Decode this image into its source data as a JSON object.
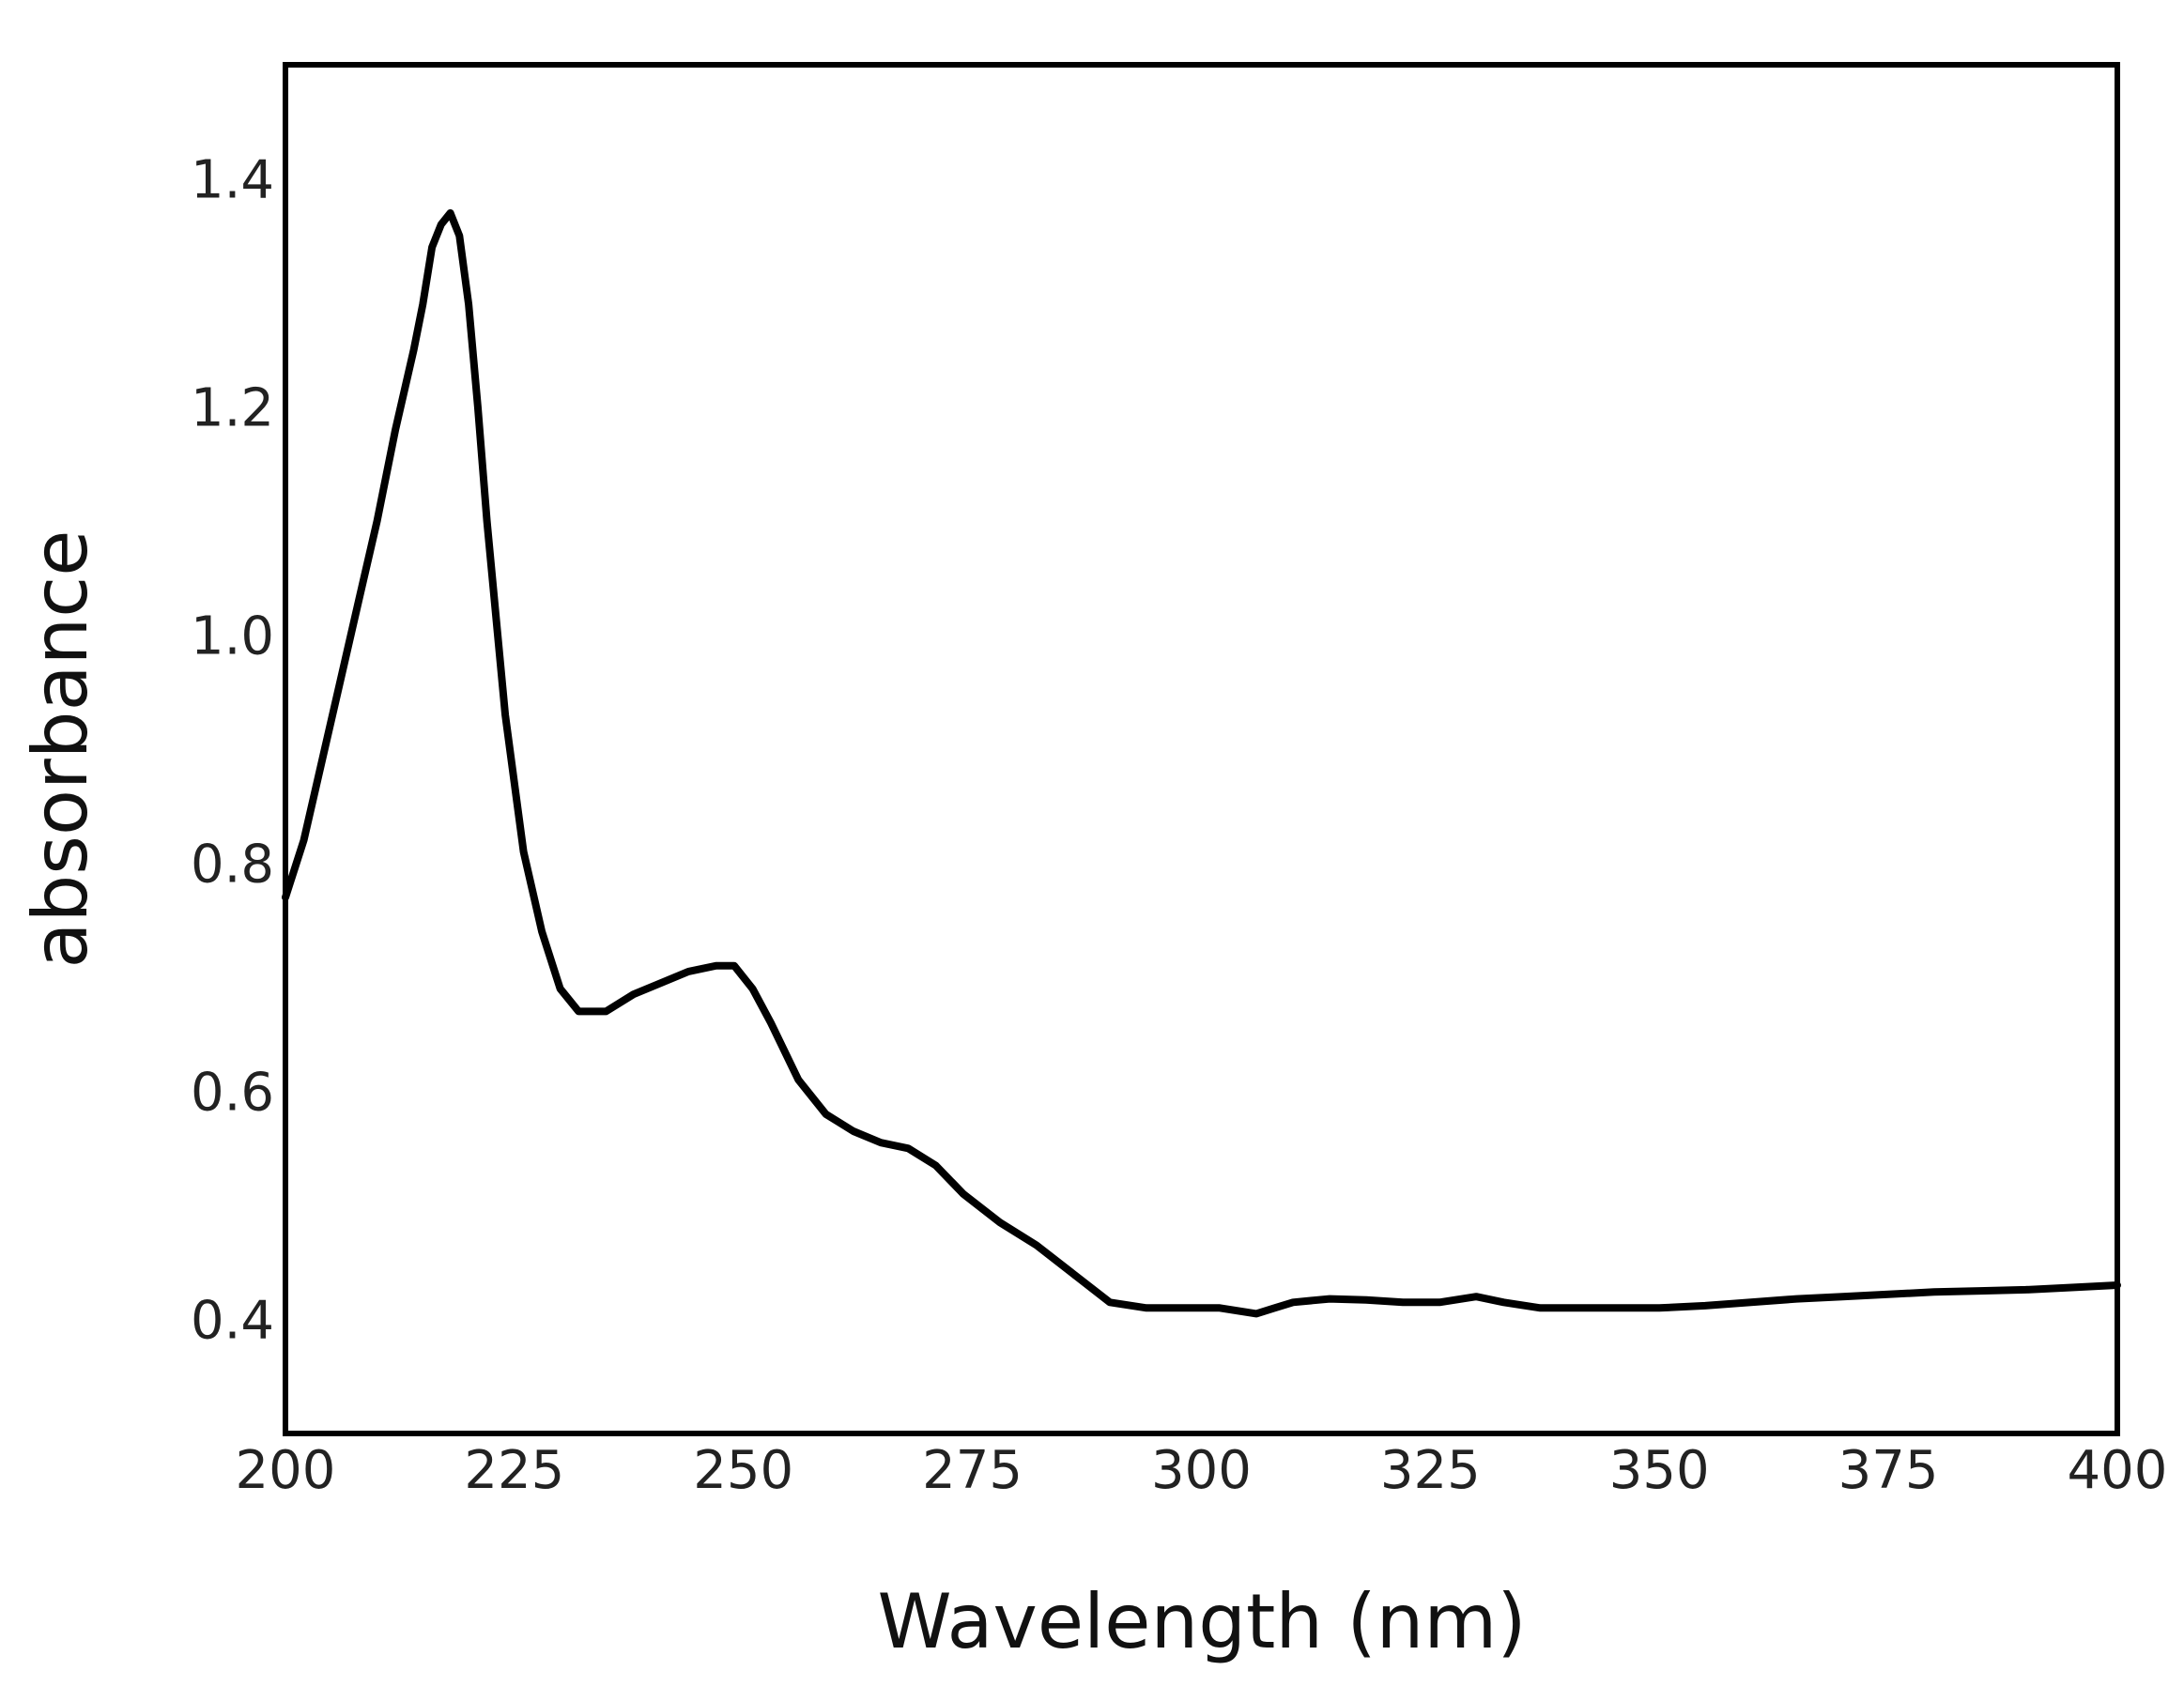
{
  "chart_data": {
    "type": "line",
    "title": "",
    "xlabel": "Wavelength (nm)",
    "ylabel": "absorbance",
    "xlim": [
      200,
      400
    ],
    "ylim": [
      0.3,
      1.5
    ],
    "x_ticks": [
      "200",
      "225",
      "250",
      "275",
      "300",
      "325",
      "350",
      "375",
      "400"
    ],
    "y_ticks": [
      "0.4",
      "0.6",
      "0.8",
      "1.0",
      "1.2",
      "1.4"
    ],
    "grid": false,
    "legend": "none",
    "line_color": "#000000",
    "series": [
      {
        "x": [
          200,
          202,
          204,
          206,
          208,
          210,
          212,
          214,
          215,
          216,
          217,
          218,
          219,
          220,
          221,
          222,
          224,
          226,
          228,
          230,
          232,
          235,
          238,
          241,
          244,
          247,
          249,
          251,
          253,
          256,
          259,
          262,
          265,
          268,
          271,
          274,
          278,
          282,
          286,
          290,
          294,
          298,
          302,
          306,
          308,
          310,
          314,
          318,
          322,
          326,
          330,
          333,
          337,
          341,
          345,
          350,
          355,
          360,
          365,
          370,
          375,
          380,
          385,
          390,
          395,
          400
        ],
        "y": [
          0.77,
          0.82,
          0.89,
          0.96,
          1.03,
          1.1,
          1.18,
          1.25,
          1.29,
          1.34,
          1.36,
          1.37,
          1.35,
          1.29,
          1.2,
          1.1,
          0.93,
          0.81,
          0.74,
          0.69,
          0.67,
          0.67,
          0.685,
          0.695,
          0.705,
          0.71,
          0.71,
          0.69,
          0.66,
          0.61,
          0.58,
          0.565,
          0.555,
          0.55,
          0.535,
          0.51,
          0.485,
          0.465,
          0.44,
          0.415,
          0.41,
          0.41,
          0.41,
          0.405,
          0.41,
          0.415,
          0.418,
          0.417,
          0.415,
          0.415,
          0.42,
          0.415,
          0.41,
          0.41,
          0.41,
          0.41,
          0.412,
          0.415,
          0.418,
          0.42,
          0.422,
          0.424,
          0.425,
          0.426,
          0.428,
          0.43
        ]
      }
    ]
  }
}
